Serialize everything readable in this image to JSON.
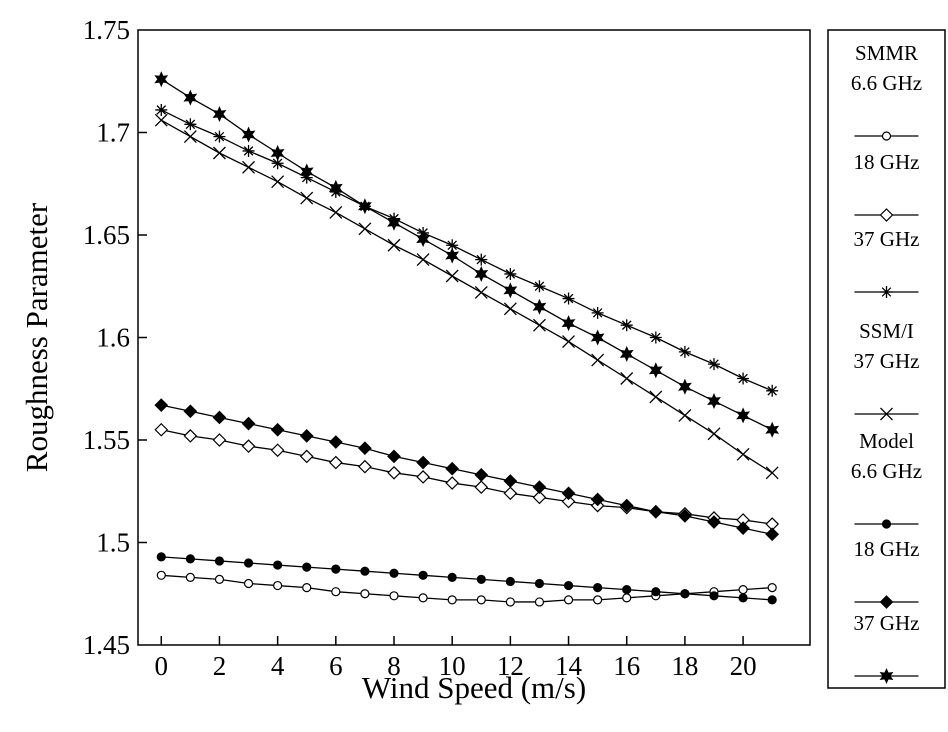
{
  "chart_data": {
    "type": "line",
    "title": "",
    "xlabel": "Wind Speed (m/s)",
    "ylabel": "Roughness Parameter",
    "xlim": [
      -0.8,
      22.3
    ],
    "ylim": [
      1.45,
      1.75
    ],
    "xticks": [
      0,
      2,
      4,
      6,
      8,
      10,
      12,
      14,
      16,
      18,
      20
    ],
    "yticks": [
      1.45,
      1.5,
      1.55,
      1.6,
      1.65,
      1.7,
      1.75
    ],
    "ytick_labels": [
      "1.45",
      "1.5",
      "1.55",
      "1.6",
      "1.65",
      "1.7",
      "1.75"
    ],
    "grid": false,
    "legend_position": "right, outside plot",
    "x": [
      0,
      1,
      2,
      3,
      4,
      5,
      6,
      7,
      8,
      9,
      10,
      11,
      12,
      13,
      14,
      15,
      16,
      17,
      18,
      19,
      20,
      21
    ],
    "series": [
      {
        "group": "SMMR",
        "name": "6.6 GHz",
        "marker": "open-circle",
        "values": [
          1.484,
          1.483,
          1.482,
          1.48,
          1.479,
          1.478,
          1.476,
          1.475,
          1.474,
          1.473,
          1.472,
          1.472,
          1.471,
          1.471,
          1.472,
          1.472,
          1.473,
          1.474,
          1.475,
          1.476,
          1.477,
          1.478
        ]
      },
      {
        "group": "SMMR",
        "name": "18 GHz",
        "marker": "open-diamond",
        "values": [
          1.555,
          1.552,
          1.55,
          1.547,
          1.545,
          1.542,
          1.539,
          1.537,
          1.534,
          1.532,
          1.529,
          1.527,
          1.524,
          1.522,
          1.52,
          1.518,
          1.517,
          1.515,
          1.514,
          1.512,
          1.511,
          1.509
        ]
      },
      {
        "group": "SMMR",
        "name": "37 GHz",
        "marker": "asterisk",
        "values": [
          1.711,
          1.704,
          1.698,
          1.691,
          1.685,
          1.678,
          1.671,
          1.664,
          1.658,
          1.651,
          1.645,
          1.638,
          1.631,
          1.625,
          1.619,
          1.612,
          1.606,
          1.6,
          1.593,
          1.587,
          1.58,
          1.574
        ]
      },
      {
        "group": "SSM/I",
        "name": "37 GHz",
        "marker": "x",
        "values": [
          1.706,
          1.698,
          1.69,
          1.683,
          1.676,
          1.668,
          1.661,
          1.653,
          1.645,
          1.638,
          1.63,
          1.622,
          1.614,
          1.606,
          1.598,
          1.589,
          1.58,
          1.571,
          1.562,
          1.553,
          1.543,
          1.534
        ]
      },
      {
        "group": "Model",
        "name": "6.6 GHz",
        "marker": "filled-circle",
        "values": [
          1.493,
          1.492,
          1.491,
          1.49,
          1.489,
          1.488,
          1.487,
          1.486,
          1.485,
          1.484,
          1.483,
          1.482,
          1.481,
          1.48,
          1.479,
          1.478,
          1.477,
          1.476,
          1.475,
          1.474,
          1.473,
          1.472
        ]
      },
      {
        "group": "Model",
        "name": "18 GHz",
        "marker": "filled-diamond",
        "values": [
          1.567,
          1.564,
          1.561,
          1.558,
          1.555,
          1.552,
          1.549,
          1.546,
          1.542,
          1.539,
          1.536,
          1.533,
          1.53,
          1.527,
          1.524,
          1.521,
          1.518,
          1.515,
          1.513,
          1.51,
          1.507,
          1.504
        ]
      },
      {
        "group": "Model",
        "name": "37 GHz",
        "marker": "filled-star",
        "values": [
          1.726,
          1.717,
          1.709,
          1.699,
          1.69,
          1.681,
          1.673,
          1.664,
          1.656,
          1.648,
          1.64,
          1.631,
          1.623,
          1.615,
          1.607,
          1.6,
          1.592,
          1.584,
          1.576,
          1.569,
          1.562,
          1.555
        ]
      }
    ],
    "legend": [
      {
        "group_label": "SMMR",
        "series_index": 0
      },
      {
        "group_label": "",
        "series_index": 1
      },
      {
        "group_label": "",
        "series_index": 2
      },
      {
        "group_label": "SSM/I",
        "series_index": 3
      },
      {
        "group_label": "Model",
        "series_index": 4
      },
      {
        "group_label": "",
        "series_index": 5
      },
      {
        "group_label": "",
        "series_index": 6
      }
    ]
  }
}
